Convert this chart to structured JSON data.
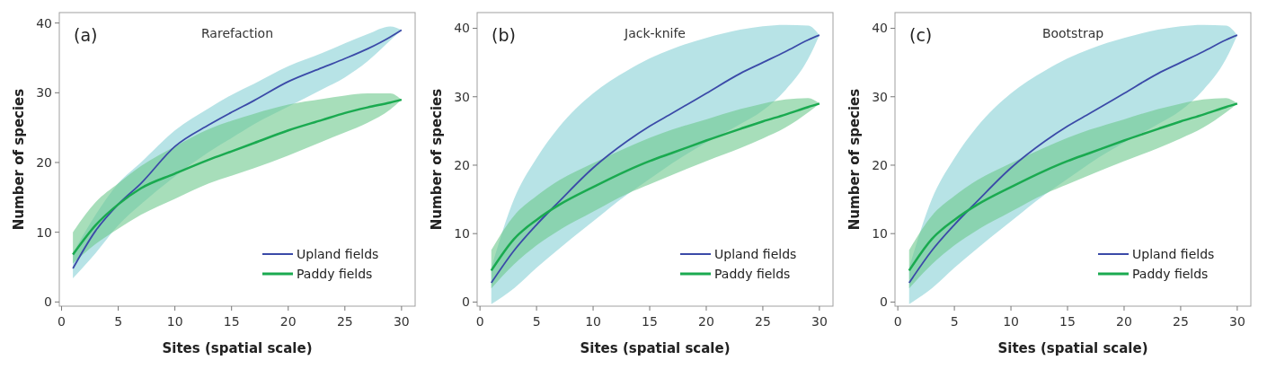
{
  "chart_data": [
    {
      "type": "line",
      "title": "Rarefaction",
      "annotations": [
        "(a)"
      ],
      "xlabel": "Sites (spatial scale)",
      "ylabel": "Number of species",
      "xlim": [
        -0.2,
        31.2
      ],
      "ylim": [
        -0.6,
        41.5
      ],
      "xticks": [
        0,
        5,
        10,
        15,
        20,
        25,
        30
      ],
      "yticks": [
        0,
        10,
        20,
        30,
        40
      ],
      "legend": "bottom right",
      "grid": false,
      "x": [
        1,
        3,
        5,
        7,
        10,
        13,
        15,
        17,
        20,
        23,
        25,
        27,
        29,
        30
      ],
      "series": [
        {
          "name": "Upland fields",
          "color": "#3b4aa8",
          "values": [
            4.8,
            10.2,
            14,
            17,
            22.3,
            25.4,
            27.2,
            28.9,
            31.6,
            33.6,
            34.9,
            36.3,
            38,
            39
          ],
          "lower": [
            3.4,
            7,
            11,
            14,
            18,
            21.5,
            23.5,
            25.5,
            28,
            30.5,
            32.2,
            34.5,
            37.5,
            39
          ],
          "upper": [
            7,
            12.5,
            17,
            20,
            24.6,
            27.8,
            29.7,
            31.3,
            33.8,
            35.7,
            37.1,
            38.4,
            39.5,
            39
          ]
        },
        {
          "name": "Paddy fields",
          "color": "#1aaa50",
          "values": [
            6.8,
            11,
            14,
            16.3,
            18.4,
            20.4,
            21.6,
            22.8,
            24.6,
            26.1,
            27.1,
            27.9,
            28.6,
            29
          ],
          "lower": [
            5.5,
            8.3,
            10.5,
            12.5,
            14.8,
            17,
            18.1,
            19.2,
            21,
            23,
            24.3,
            25.7,
            27.6,
            29
          ],
          "upper": [
            10,
            14.3,
            17,
            19.5,
            22.3,
            24.8,
            26,
            27,
            28.3,
            29.1,
            29.6,
            29.9,
            29.9,
            29
          ]
        }
      ]
    },
    {
      "type": "line",
      "title": "Jack-knife",
      "annotations": [
        "(b)"
      ],
      "xlabel": "Sites (spatial scale)",
      "ylabel": "Number of species",
      "xlim": [
        -0.25,
        31.2
      ],
      "ylim": [
        -0.6,
        42.3
      ],
      "xticks": [
        0,
        5,
        10,
        15,
        20,
        25,
        30
      ],
      "yticks": [
        0,
        10,
        20,
        30,
        40
      ],
      "legend": "bottom right",
      "grid": false,
      "x": [
        1,
        3,
        5,
        7,
        10,
        13,
        15,
        17,
        20,
        23,
        25,
        27,
        29,
        30
      ],
      "series": [
        {
          "name": "Upland fields",
          "color": "#3b4aa8",
          "values": [
            2.8,
            7.5,
            11.3,
            14.7,
            19.6,
            23.5,
            25.7,
            27.6,
            30.5,
            33.4,
            35,
            36.6,
            38.3,
            39
          ],
          "lower": [
            -0.3,
            2,
            5,
            7.8,
            11.8,
            15.7,
            18,
            20.3,
            23.3,
            26,
            28,
            31,
            35.5,
            39
          ],
          "upper": [
            5,
            15,
            21,
            25.6,
            30.5,
            33.8,
            35.6,
            37,
            38.6,
            39.8,
            40.3,
            40.5,
            40.4,
            39
          ]
        },
        {
          "name": "Paddy fields",
          "color": "#1aaa50",
          "values": [
            4.6,
            9.2,
            12,
            14.2,
            16.8,
            19.2,
            20.6,
            21.8,
            23.6,
            25.3,
            26.4,
            27.4,
            28.5,
            29
          ],
          "lower": [
            2,
            5.5,
            8.3,
            10.5,
            13.2,
            15.8,
            17.2,
            18.6,
            20.6,
            22.5,
            23.9,
            25.5,
            27.7,
            29
          ],
          "upper": [
            7.6,
            12.6,
            15.5,
            17.8,
            20.3,
            22.6,
            24,
            25.2,
            26.7,
            28.2,
            29,
            29.6,
            29.8,
            29
          ]
        }
      ]
    },
    {
      "type": "line",
      "title": "Bootstrap",
      "annotations": [
        "(c)"
      ],
      "xlabel": "Sites (spatial scale)",
      "ylabel": "Number of species",
      "xlim": [
        -0.25,
        31.2
      ],
      "ylim": [
        -0.6,
        42.3
      ],
      "xticks": [
        0,
        5,
        10,
        15,
        20,
        25,
        30
      ],
      "yticks": [
        0,
        10,
        20,
        30,
        40
      ],
      "legend": "bottom right",
      "grid": false,
      "x": [
        1,
        3,
        5,
        7,
        10,
        13,
        15,
        17,
        20,
        23,
        25,
        27,
        29,
        30
      ],
      "series": [
        {
          "name": "Upland fields",
          "color": "#3b4aa8",
          "values": [
            2.8,
            7.5,
            11.3,
            14.7,
            19.6,
            23.5,
            25.7,
            27.6,
            30.5,
            33.4,
            35,
            36.6,
            38.3,
            39
          ],
          "lower": [
            -0.3,
            2,
            5,
            7.8,
            11.8,
            15.7,
            18,
            20.3,
            23.3,
            26,
            28,
            31,
            35.5,
            39
          ],
          "upper": [
            5,
            15,
            21,
            25.6,
            30.5,
            33.8,
            35.6,
            37,
            38.6,
            39.8,
            40.3,
            40.5,
            40.4,
            39
          ]
        },
        {
          "name": "Paddy fields",
          "color": "#1aaa50",
          "values": [
            4.6,
            9.2,
            12,
            14.2,
            16.8,
            19.2,
            20.6,
            21.8,
            23.6,
            25.3,
            26.4,
            27.4,
            28.5,
            29
          ],
          "lower": [
            2,
            5.5,
            8.3,
            10.5,
            13.2,
            15.8,
            17.2,
            18.6,
            20.6,
            22.5,
            23.9,
            25.5,
            27.7,
            29
          ],
          "upper": [
            7.6,
            12.6,
            15.5,
            17.8,
            20.3,
            22.6,
            24,
            25.2,
            26.7,
            28.2,
            29,
            29.6,
            29.8,
            29
          ]
        }
      ]
    }
  ]
}
